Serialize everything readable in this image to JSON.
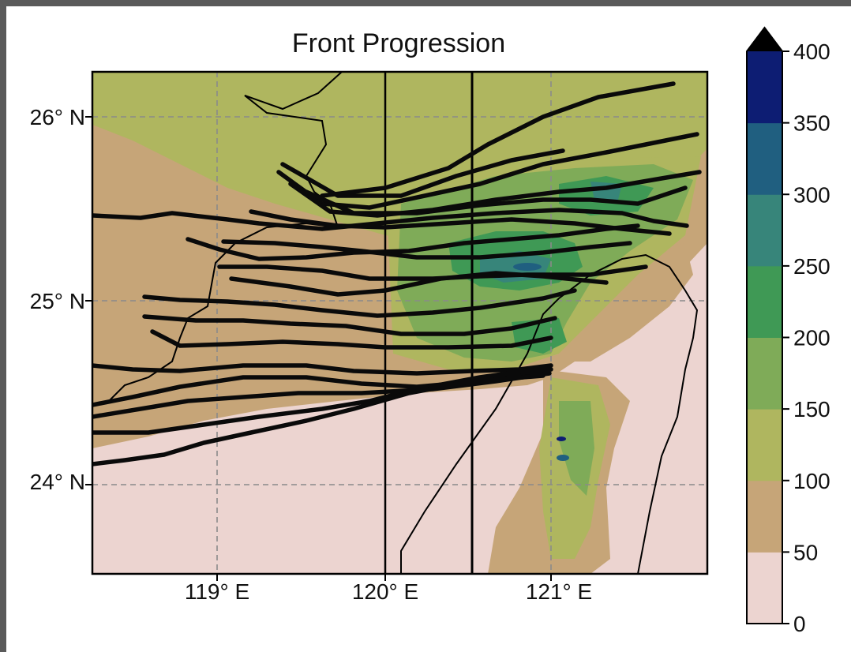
{
  "title": "Front Progression",
  "lon_ticks": [
    {
      "value": 119,
      "label": "119° E"
    },
    {
      "value": 120,
      "label": "120° E"
    },
    {
      "value": 121,
      "label": "121° E"
    }
  ],
  "lat_ticks": [
    {
      "value": 26,
      "label": "26° N"
    },
    {
      "value": 25,
      "label": "25° N"
    },
    {
      "value": 24,
      "label": "24° N"
    }
  ],
  "extent": {
    "lon": [
      118.25,
      121.95
    ],
    "lat": [
      23.45,
      26.28
    ]
  },
  "colorbar": {
    "levels": [
      0,
      50,
      100,
      150,
      200,
      250,
      300,
      350,
      400
    ],
    "labels": [
      "0",
      "50",
      "100",
      "150",
      "200",
      "250",
      "300",
      "350",
      "400"
    ],
    "colors": [
      "#ecd4d0",
      "#c6a578",
      "#afb65f",
      "#7fab58",
      "#3f9955",
      "#37857a",
      "#205f80",
      "#0d1d73"
    ],
    "extend": "max"
  },
  "colors": {
    "gridline": "#8a8a8a",
    "front": "#0a0a0a",
    "coast": "#000000",
    "frame": "#000000"
  }
}
